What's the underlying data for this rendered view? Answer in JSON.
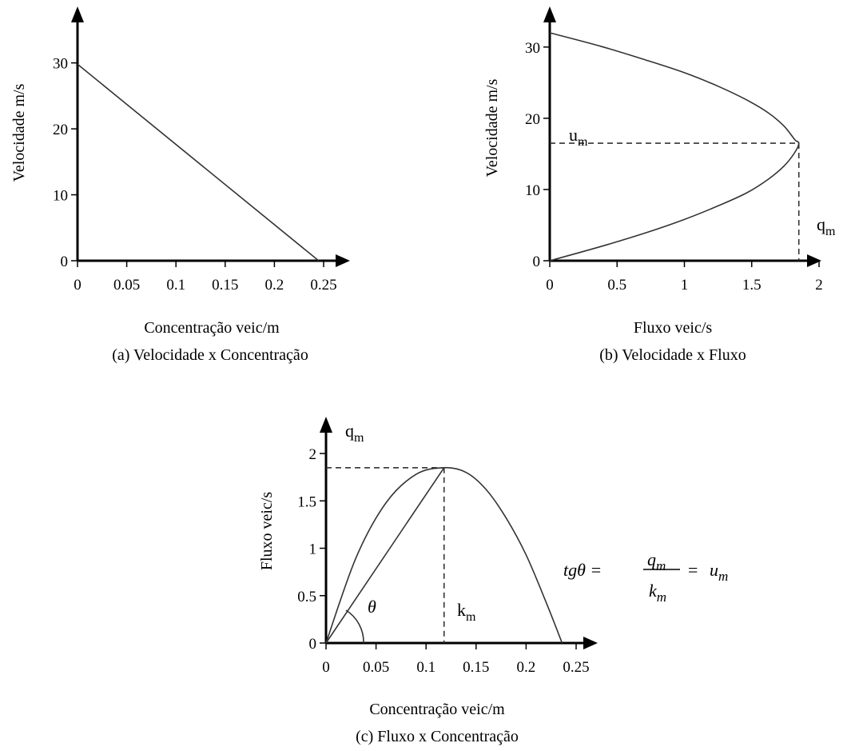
{
  "chart_data": [
    {
      "type": "line",
      "caption": "(a) Velocidade x Concentração",
      "xlabel": "Concentração veic/m",
      "ylabel": "Velocidade m/s",
      "xlim": [
        0,
        0.25
      ],
      "ylim": [
        0,
        35
      ],
      "x_ticks": [
        "0",
        "0.05",
        "0.1",
        "0.15",
        "0.2",
        "0.25"
      ],
      "y_ticks": [
        "0",
        "10",
        "20",
        "30"
      ],
      "series": [
        {
          "x": [
            0,
            0.245
          ],
          "y": [
            29.8,
            0
          ]
        }
      ]
    },
    {
      "type": "line",
      "caption": "(b) Velocidade x Fluxo",
      "xlabel": "Fluxo veic/s",
      "ylabel": "Velocidade m/s",
      "xlim": [
        0,
        2
      ],
      "ylim": [
        0,
        33
      ],
      "x_ticks": [
        "0",
        "0.5",
        "1",
        "1.5",
        "2"
      ],
      "y_ticks": [
        "0",
        "10",
        "20",
        "30"
      ],
      "max_point": {
        "q": 1.85,
        "u": 16.5
      },
      "labels": {
        "u_m": "u",
        "u_m_sub": "m",
        "q_m": "q",
        "q_m_sub": "m"
      },
      "series": [
        {
          "x": [
            0,
            0.38,
            0.71,
            1.0,
            1.25,
            1.46,
            1.62,
            1.74,
            1.82,
            1.85,
            1.82,
            1.74,
            1.62,
            1.46,
            1.25,
            1.0,
            0.71,
            0.38,
            0
          ],
          "y": [
            32,
            30.1,
            28.2,
            26.4,
            24.5,
            22.6,
            20.8,
            18.9,
            17.0,
            16.5,
            15.2,
            13.3,
            11.4,
            9.5,
            7.7,
            5.8,
            3.9,
            2.0,
            0
          ]
        }
      ]
    },
    {
      "type": "line",
      "caption": "(c) Fluxo x Concentração",
      "xlabel": "Concentração veic/m",
      "ylabel": "Fluxo veic/s",
      "xlim": [
        0,
        0.25
      ],
      "ylim": [
        0,
        2
      ],
      "x_ticks": [
        "0",
        "0.05",
        "0.1",
        "0.15",
        "0.2",
        "0.25"
      ],
      "y_ticks": [
        "0",
        "0.5",
        "1",
        "1.5",
        "2"
      ],
      "max_point": {
        "k": 0.118,
        "q": 1.85
      },
      "labels": {
        "q_m": "q",
        "q_m_sub": "m",
        "k_m": "k",
        "k_m_sub": "m",
        "theta": "θ"
      },
      "formula": {
        "lhs": "tgθ =",
        "num": "q",
        "num_sub": "m",
        "den": "k",
        "den_sub": "m",
        "eq": "=",
        "rhs": "u",
        "rhs_sub": "m"
      },
      "series": [
        {
          "x": [
            0,
            0.03,
            0.06,
            0.09,
            0.118,
            0.14,
            0.16,
            0.18,
            0.2,
            0.22,
            0.236
          ],
          "y": [
            0,
            0.9,
            1.48,
            1.78,
            1.85,
            1.8,
            1.62,
            1.32,
            0.93,
            0.43,
            0
          ]
        },
        {
          "x": [
            0,
            0.118
          ],
          "y": [
            0,
            1.85
          ]
        }
      ]
    }
  ]
}
